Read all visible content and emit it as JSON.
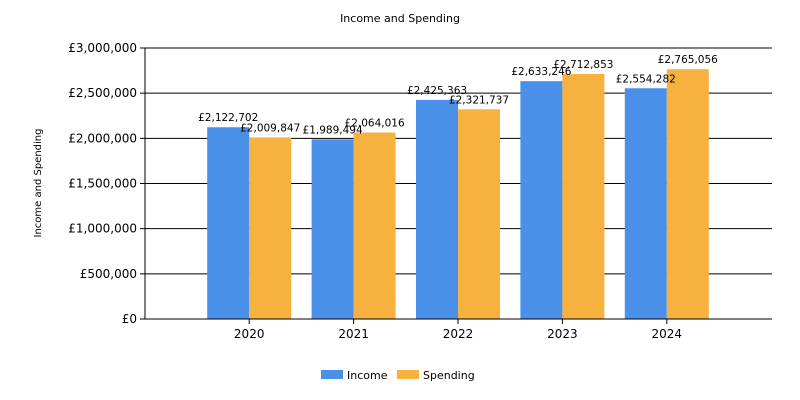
{
  "chart_data": {
    "type": "bar",
    "title": "Income and Spending",
    "xlabel": "",
    "ylabel": "Income and Spending",
    "categories": [
      "2020",
      "2021",
      "2022",
      "2023",
      "2024"
    ],
    "series": [
      {
        "name": "Income",
        "color": "#4a8fe8",
        "values": [
          2122702,
          1989494,
          2425363,
          2633246,
          2554282
        ],
        "labels": [
          "£2,122,702",
          "£1,989,494",
          "£2,425,363",
          "£2,633,246",
          "£2,554,282"
        ]
      },
      {
        "name": "Spending",
        "color": "#f7b13f",
        "values": [
          2009847,
          2064016,
          2321737,
          2712853,
          2765056
        ],
        "labels": [
          "£2,009,847",
          "£2,064,016",
          "£2,321,737",
          "£2,712,853",
          "£2,765,056"
        ]
      }
    ],
    "ylim": [
      0,
      3000000
    ],
    "yticks": [
      0,
      500000,
      1000000,
      1500000,
      2000000,
      2500000,
      3000000
    ],
    "ytick_labels": [
      "£0",
      "£500,000",
      "£1,000,000",
      "£1,500,000",
      "£2,000,000",
      "£2,500,000",
      "£3,000,000"
    ],
    "grid": true,
    "legend_position": "bottom-center"
  }
}
